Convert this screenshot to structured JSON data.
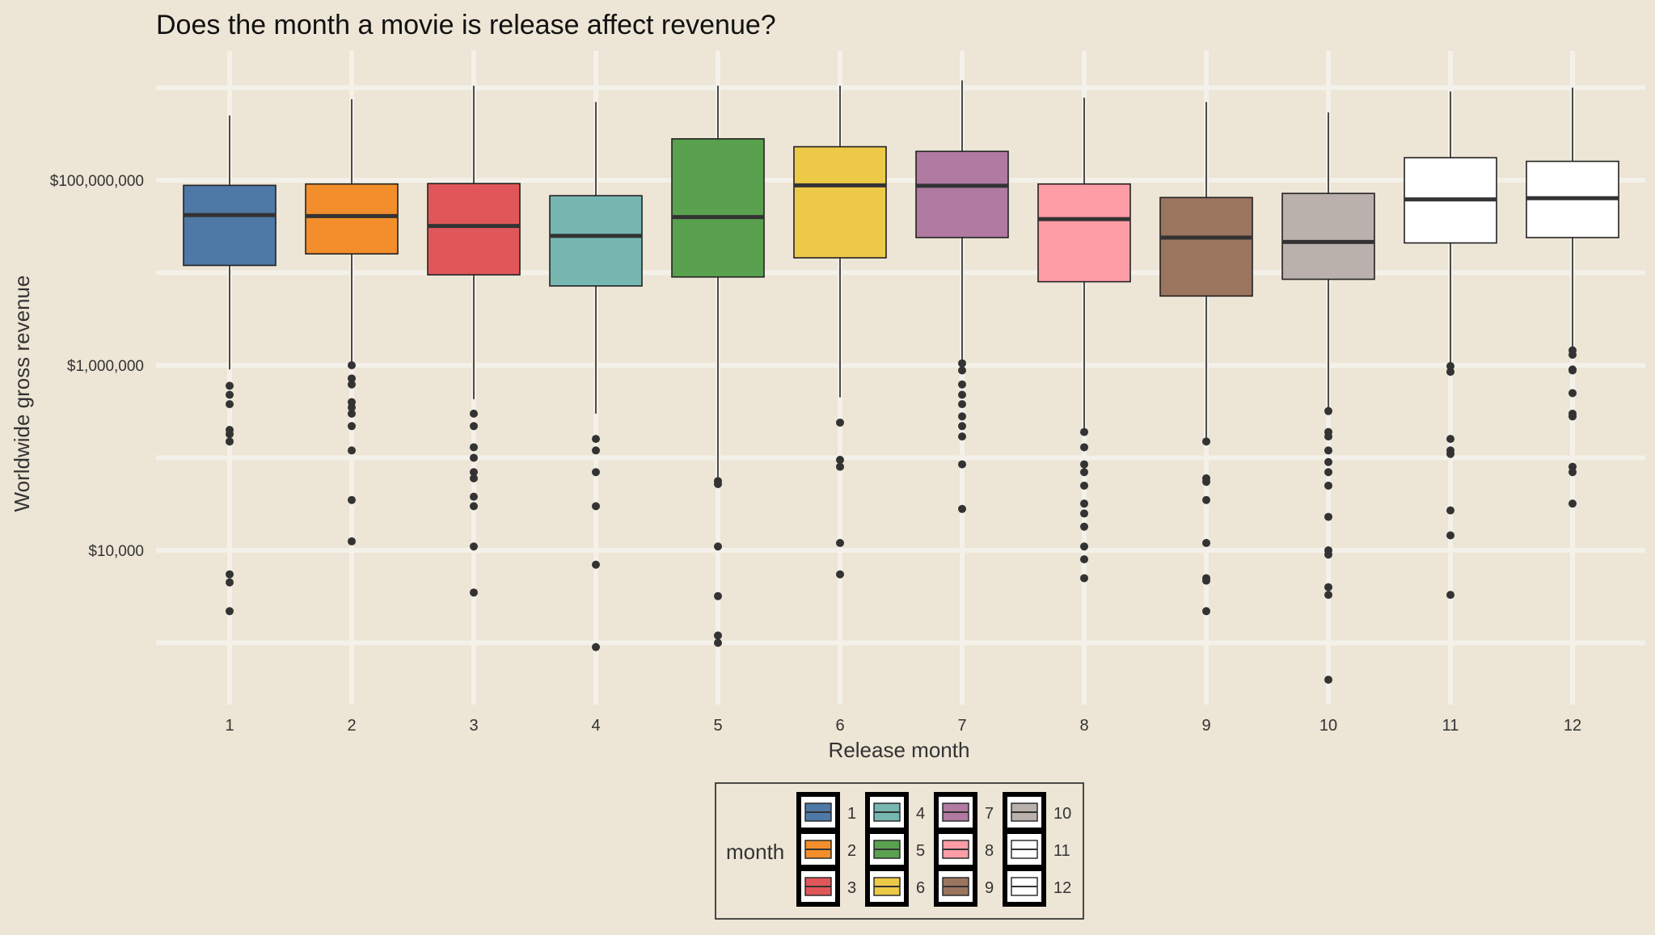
{
  "chart_data": {
    "type": "box",
    "title": "Does the month a movie is release affect revenue?",
    "xlabel": "Release month",
    "ylabel": "Worldwide gross revenue",
    "y_scale": "log10",
    "ylim": [
      400,
      12000000000
    ],
    "y_ticks": [
      10000,
      1000000,
      100000000
    ],
    "y_tick_labels": [
      "$10,000",
      "$1,000,000",
      "$100,000,000"
    ],
    "categories": [
      "1",
      "2",
      "3",
      "4",
      "5",
      "6",
      "7",
      "8",
      "9",
      "10",
      "11",
      "12"
    ],
    "series": [
      {
        "name": "1",
        "color": "#4e79a7",
        "whisker_low": 900000,
        "q1": 12000000,
        "median": 42000000,
        "q3": 88000000,
        "whisker_high": 500000000,
        "outliers": [
          600000,
          480000,
          380000,
          200000,
          180000,
          150000,
          5500,
          4500,
          2200
        ]
      },
      {
        "name": "2",
        "color": "#f28e2b",
        "whisker_low": 1000000,
        "q1": 16000000,
        "median": 41000000,
        "q3": 91000000,
        "whisker_high": 750000000,
        "outliers": [
          1000000,
          720000,
          620000,
          400000,
          350000,
          300000,
          220000,
          120000,
          35000,
          12500
        ]
      },
      {
        "name": "3",
        "color": "#e15759",
        "whisker_low": 430000,
        "q1": 9500000,
        "median": 32000000,
        "q3": 92000000,
        "whisker_high": 1050000000,
        "outliers": [
          300000,
          220000,
          130000,
          100000,
          70000,
          60000,
          38000,
          30000,
          11000,
          3500
        ]
      },
      {
        "name": "4",
        "color": "#76b7b2",
        "whisker_low": 300000,
        "q1": 7200000,
        "median": 25000000,
        "q3": 68000000,
        "whisker_high": 700000000,
        "outliers": [
          160000,
          120000,
          70000,
          30000,
          7000,
          900
        ]
      },
      {
        "name": "5",
        "color": "#59a14f",
        "whisker_low": 56000,
        "q1": 9000000,
        "median": 40000000,
        "q3": 280000000,
        "whisker_high": 1050000000,
        "outliers": [
          56000,
          52000,
          11000,
          3200,
          1200,
          1000
        ]
      },
      {
        "name": "6",
        "color": "#edc948",
        "whisker_low": 450000,
        "q1": 14500000,
        "median": 88000000,
        "q3": 230000000,
        "whisker_high": 1050000000,
        "outliers": [
          240000,
          95000,
          80000,
          12000,
          5500
        ]
      },
      {
        "name": "7",
        "color": "#b07aa1",
        "whisker_low": 1100000,
        "q1": 24000000,
        "median": 87000000,
        "q3": 205000000,
        "whisker_high": 1200000000,
        "outliers": [
          1050000,
          880000,
          620000,
          480000,
          380000,
          280000,
          220000,
          170000,
          85000,
          28000
        ]
      },
      {
        "name": "8",
        "color": "#ff9da7",
        "whisker_low": 200000,
        "q1": 8000000,
        "median": 38000000,
        "q3": 91000000,
        "whisker_high": 780000000,
        "outliers": [
          190000,
          130000,
          85000,
          70000,
          50000,
          32000,
          25000,
          18000,
          11000,
          8000,
          5000
        ]
      },
      {
        "name": "9",
        "color": "#9c755f",
        "whisker_low": 150000,
        "q1": 5600000,
        "median": 24000000,
        "q3": 65000000,
        "whisker_high": 700000000,
        "outliers": [
          150000,
          60000,
          55000,
          35000,
          12000,
          5000,
          4700,
          2200
        ]
      },
      {
        "name": "10",
        "color": "#bab0ac",
        "whisker_low": 320000,
        "q1": 8500000,
        "median": 21500000,
        "q3": 72000000,
        "whisker_high": 540000000,
        "outliers": [
          320000,
          190000,
          170000,
          120000,
          90000,
          70000,
          50000,
          23000,
          10000,
          9000,
          4000,
          3300,
          400
        ]
      },
      {
        "name": "11",
        "color": "#ffffff",
        "whisker_low": 950000,
        "q1": 21000000,
        "median": 62000000,
        "q3": 175000000,
        "whisker_high": 910000000,
        "outliers": [
          980000,
          850000,
          160000,
          120000,
          110000,
          27000,
          14500,
          3300
        ]
      },
      {
        "name": "12",
        "color": "#ffffff",
        "whisker_low": 1400000,
        "q1": 24000000,
        "median": 64000000,
        "q3": 160000000,
        "whisker_high": 1000000000,
        "outliers": [
          1450000,
          1300000,
          900000,
          880000,
          500000,
          300000,
          280000,
          80000,
          70000,
          32000
        ]
      }
    ],
    "grid": true,
    "legend": {
      "title": "month",
      "placement": "bottom",
      "entries": [
        "1",
        "2",
        "3",
        "4",
        "5",
        "6",
        "7",
        "8",
        "9",
        "10",
        "11",
        "12"
      ]
    }
  }
}
